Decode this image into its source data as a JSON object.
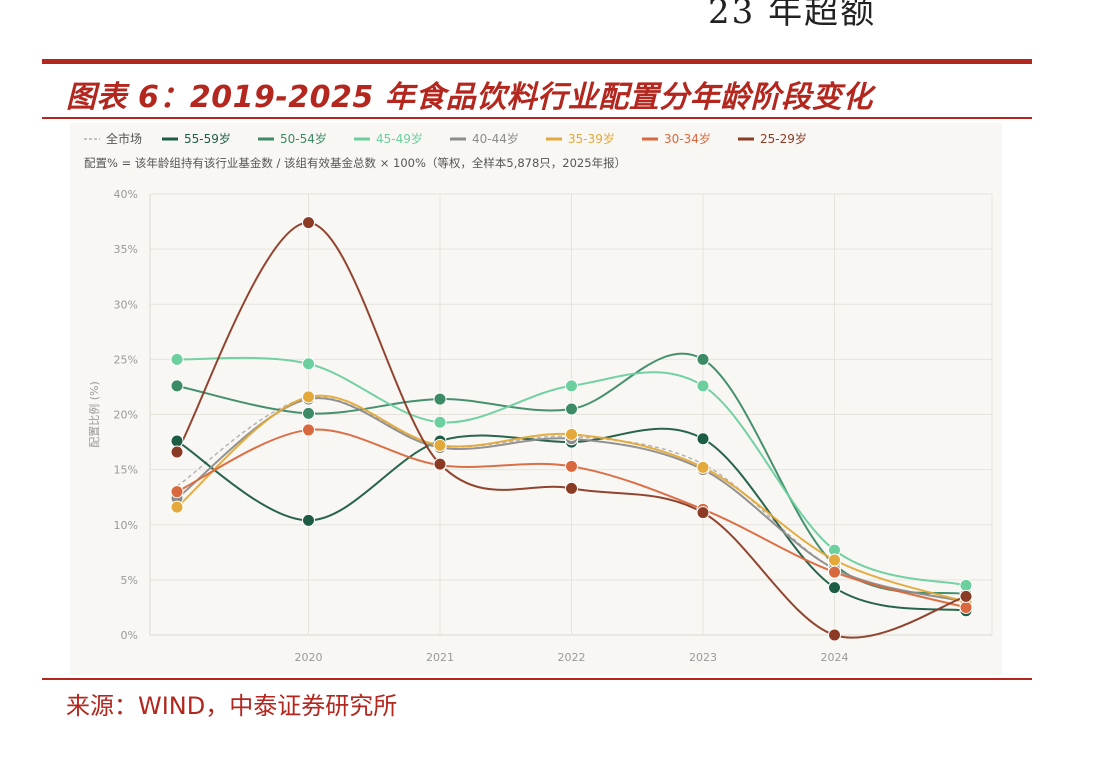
{
  "header_fragment": "23 年超额",
  "figure_title": "图表 6：2019-2025 年食品饮料行业配置分年龄阶段变化",
  "source": "来源：WIND，中泰证券研究所",
  "chart_data": {
    "type": "line",
    "note": "配置% = 该年龄组持有该行业基金数 / 该组有效基金总数 × 100%（等权，全样本5,878只，2025年报）",
    "ylabel": "配置比例 (%)",
    "xlabel": "",
    "x": [
      2019,
      2020,
      2021,
      2022,
      2023,
      2024,
      2025
    ],
    "x_tick_labels": [
      "2020",
      "2021",
      "2022",
      "2023",
      "2024"
    ],
    "ylim": [
      0,
      40
    ],
    "y_ticks": [
      0,
      5,
      10,
      15,
      20,
      25,
      30,
      35,
      40
    ],
    "y_tick_labels": [
      "0%",
      "5%",
      "10%",
      "15%",
      "20%",
      "25%",
      "30%",
      "35%",
      "40%"
    ],
    "grid": true,
    "legend_position": "top-left",
    "series": [
      {
        "name": "全市场",
        "color": "#b0b0b0",
        "dashed": true,
        "markers": false,
        "values": [
          13.5,
          21.5,
          17.2,
          18.0,
          15.5,
          6.0,
          3.0
        ]
      },
      {
        "name": "55-59岁",
        "color": "#1d5c45",
        "values": [
          17.6,
          10.4,
          17.6,
          17.5,
          17.8,
          4.3,
          2.2
        ]
      },
      {
        "name": "50-54岁",
        "color": "#3c8a66",
        "values": [
          22.6,
          20.1,
          21.4,
          20.5,
          25.0,
          6.4,
          3.7
        ]
      },
      {
        "name": "45-49岁",
        "color": "#6ccf9e",
        "values": [
          25.0,
          24.6,
          19.3,
          22.6,
          22.6,
          7.7,
          4.5
        ]
      },
      {
        "name": "40-44岁",
        "color": "#8c8c8c",
        "values": [
          12.4,
          21.4,
          17.0,
          17.8,
          15.0,
          6.0,
          3.0
        ]
      },
      {
        "name": "35-39岁",
        "color": "#e3a93a",
        "values": [
          11.6,
          21.6,
          17.2,
          18.2,
          15.2,
          6.8,
          3.0
        ]
      },
      {
        "name": "30-34岁",
        "color": "#d9683e",
        "values": [
          13.0,
          18.6,
          15.4,
          15.3,
          11.4,
          5.7,
          2.5
        ]
      },
      {
        "name": "25-29岁",
        "color": "#8b3a25",
        "values": [
          16.6,
          37.4,
          15.5,
          13.3,
          11.1,
          0.0,
          3.5
        ]
      }
    ]
  }
}
